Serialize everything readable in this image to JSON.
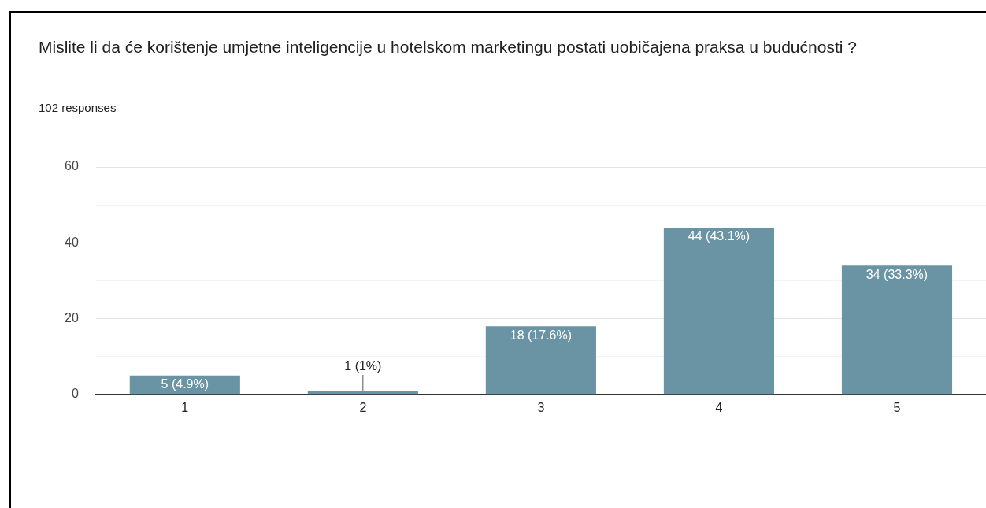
{
  "chart_data": {
    "type": "bar",
    "title": "Mislite li da će korištenje umjetne inteligencije u hotelskom marketingu postati uobičajena praksa u budućnosti ?",
    "subtitle": "102 responses",
    "categories": [
      "1",
      "2",
      "3",
      "4",
      "5"
    ],
    "values": [
      5,
      1,
      18,
      44,
      34
    ],
    "value_labels": [
      "5 (4.9%)",
      "1 (1%)",
      "18 (17.6%)",
      "44 (43.1%)",
      "34 (33.3%)"
    ],
    "color": "#6a94a3",
    "ylim": [
      0,
      60
    ],
    "yticks": [
      0,
      {
        "value": 10,
        "label": null
      },
      20,
      {
        "value": 30,
        "label": null
      },
      40,
      {
        "value": 50,
        "label": null
      },
      60
    ],
    "grid": "y",
    "legend": false
  }
}
